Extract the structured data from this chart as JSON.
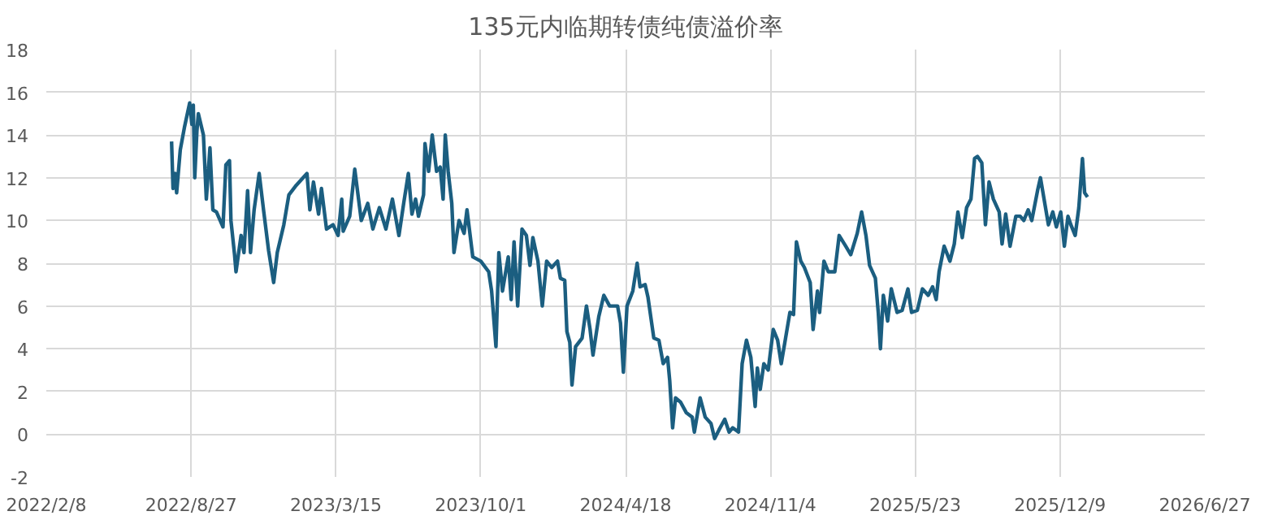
{
  "chart_data": {
    "type": "line",
    "title": "135元内临期转债纯债溢价率",
    "xlim": [
      "2022-02-08",
      "2026-06-27"
    ],
    "xticks": [
      {
        "value": "2022-02-08",
        "label": "2022/2/8"
      },
      {
        "value": "2022-08-27",
        "label": "2022/8/27"
      },
      {
        "value": "2023-03-15",
        "label": "2023/3/15"
      },
      {
        "value": "2023-10-01",
        "label": "2023/10/1"
      },
      {
        "value": "2024-04-18",
        "label": "2024/4/18"
      },
      {
        "value": "2024-11-04",
        "label": "2024/11/4"
      },
      {
        "value": "2025-05-23",
        "label": "2025/5/23"
      },
      {
        "value": "2025-12-09",
        "label": "2025/12/9"
      },
      {
        "value": "2026-06-27",
        "label": "2026/6/27"
      }
    ],
    "ylim": [
      -2,
      18
    ],
    "yticks": [
      -2,
      0,
      2,
      4,
      6,
      8,
      10,
      12,
      14,
      16,
      18
    ],
    "grid": true,
    "marker": "none",
    "line_style": "solid",
    "x": [
      "2022-07-31",
      "2022-08-02",
      "2022-08-05",
      "2022-08-07",
      "2022-08-12",
      "2022-08-18",
      "2022-08-25",
      "2022-08-28",
      "2022-08-30",
      "2022-09-01",
      "2022-09-04",
      "2022-09-06",
      "2022-09-13",
      "2022-09-17",
      "2022-09-22",
      "2022-09-26",
      "2022-10-01",
      "2022-10-10",
      "2022-10-14",
      "2022-10-19",
      "2022-10-21",
      "2022-10-26",
      "2022-10-28",
      "2022-11-04",
      "2022-11-08",
      "2022-11-13",
      "2022-11-17",
      "2022-11-22",
      "2022-11-29",
      "2022-12-05",
      "2022-12-12",
      "2022-12-19",
      "2022-12-24",
      "2023-01-02",
      "2023-01-09",
      "2023-01-18",
      "2023-02-03",
      "2023-02-07",
      "2023-02-12",
      "2023-02-19",
      "2023-02-23",
      "2023-03-02",
      "2023-03-11",
      "2023-03-18",
      "2023-03-23",
      "2023-03-25",
      "2023-04-03",
      "2023-04-10",
      "2023-04-19",
      "2023-04-28",
      "2023-05-05",
      "2023-05-14",
      "2023-05-23",
      "2023-06-01",
      "2023-06-10",
      "2023-06-17",
      "2023-06-23",
      "2023-06-28",
      "2023-07-03",
      "2023-07-07",
      "2023-07-14",
      "2023-07-16",
      "2023-07-21",
      "2023-07-26",
      "2023-08-01",
      "2023-08-06",
      "2023-08-10",
      "2023-08-13",
      "2023-08-17",
      "2023-08-22",
      "2023-08-25",
      "2023-09-01",
      "2023-09-08",
      "2023-09-12",
      "2023-09-20",
      "2023-10-01",
      "2023-10-12",
      "2023-10-16",
      "2023-10-22",
      "2023-10-26",
      "2023-10-31",
      "2023-11-08",
      "2023-11-12",
      "2023-11-16",
      "2023-11-21",
      "2023-11-27",
      "2023-12-03",
      "2023-12-08",
      "2023-12-12",
      "2023-12-19",
      "2023-12-25",
      "2023-12-31",
      "2024-01-07",
      "2024-01-15",
      "2024-01-19",
      "2024-01-25",
      "2024-01-28",
      "2024-02-01",
      "2024-02-04",
      "2024-02-09",
      "2024-02-18",
      "2024-02-24",
      "2024-02-29",
      "2024-03-04",
      "2024-03-12",
      "2024-03-19",
      "2024-03-27",
      "2024-04-07",
      "2024-04-11",
      "2024-04-15",
      "2024-04-20",
      "2024-04-28",
      "2024-05-04",
      "2024-05-08",
      "2024-05-15",
      "2024-05-19",
      "2024-05-27",
      "2024-06-03",
      "2024-06-09",
      "2024-06-15",
      "2024-06-18",
      "2024-06-22",
      "2024-06-26",
      "2024-07-03",
      "2024-07-11",
      "2024-07-19",
      "2024-07-22",
      "2024-07-30",
      "2024-08-06",
      "2024-08-14",
      "2024-08-19",
      "2024-08-25",
      "2024-09-02",
      "2024-09-08",
      "2024-09-13",
      "2024-09-21",
      "2024-09-26",
      "2024-10-02",
      "2024-10-08",
      "2024-10-14",
      "2024-10-17",
      "2024-10-21",
      "2024-10-26",
      "2024-11-01",
      "2024-11-08",
      "2024-11-14",
      "2024-11-19",
      "2024-11-25",
      "2024-12-01",
      "2024-12-06",
      "2024-12-10",
      "2024-12-16",
      "2024-12-21",
      "2024-12-29",
      "2025-01-02",
      "2025-01-08",
      "2025-01-11",
      "2025-01-17",
      "2025-01-23",
      "2025-02-01",
      "2025-02-07",
      "2025-02-16",
      "2025-02-23",
      "2025-03-04",
      "2025-03-10",
      "2025-03-16",
      "2025-03-21",
      "2025-03-29",
      "2025-04-02",
      "2025-04-05",
      "2025-04-09",
      "2025-04-15",
      "2025-04-20",
      "2025-04-28",
      "2025-05-05",
      "2025-05-13",
      "2025-05-18",
      "2025-05-26",
      "2025-06-02",
      "2025-06-10",
      "2025-06-16",
      "2025-06-21",
      "2025-06-25",
      "2025-07-02",
      "2025-07-10",
      "2025-07-16",
      "2025-07-21",
      "2025-07-27",
      "2025-08-02",
      "2025-08-08",
      "2025-08-13",
      "2025-08-17",
      "2025-08-23",
      "2025-08-28",
      "2025-09-02",
      "2025-09-08",
      "2025-09-16",
      "2025-09-20",
      "2025-09-25",
      "2025-10-01",
      "2025-10-09",
      "2025-10-15",
      "2025-10-20",
      "2025-10-26",
      "2025-10-31",
      "2025-11-08",
      "2025-11-12",
      "2025-11-17",
      "2025-11-23",
      "2025-11-29",
      "2025-12-04",
      "2025-12-10",
      "2025-12-15",
      "2025-12-20",
      "2025-12-24",
      "2025-12-30",
      "2026-01-04",
      "2026-01-09",
      "2026-01-12",
      "2026-01-16"
    ],
    "series": [
      {
        "color": "#1b5e80",
        "values": [
          13.7,
          11.5,
          12.2,
          11.3,
          13.3,
          14.4,
          15.5,
          14.5,
          15.4,
          12.0,
          14.2,
          15.0,
          14.0,
          11.0,
          13.4,
          10.5,
          10.4,
          9.7,
          12.6,
          12.8,
          10.0,
          8.4,
          7.6,
          9.3,
          8.5,
          11.4,
          8.5,
          10.5,
          12.2,
          10.5,
          8.6,
          7.1,
          8.5,
          9.8,
          11.2,
          11.6,
          12.2,
          10.5,
          11.8,
          10.3,
          11.5,
          9.6,
          9.8,
          9.3,
          11.0,
          9.5,
          10.2,
          12.4,
          10.0,
          10.8,
          9.6,
          10.6,
          9.6,
          11.0,
          9.3,
          10.9,
          12.2,
          10.3,
          11.0,
          10.2,
          11.2,
          13.6,
          12.3,
          14.0,
          12.3,
          12.5,
          11.0,
          14.0,
          12.3,
          10.8,
          8.5,
          10.0,
          9.4,
          10.5,
          8.3,
          8.1,
          7.6,
          6.7,
          4.1,
          8.5,
          6.7,
          8.3,
          6.3,
          9.0,
          6.0,
          9.6,
          9.3,
          7.9,
          9.2,
          8.1,
          6.0,
          8.1,
          7.8,
          8.1,
          7.3,
          7.2,
          4.8,
          4.3,
          2.3,
          4.1,
          4.5,
          6.0,
          4.9,
          3.7,
          5.5,
          6.5,
          6.0,
          6.0,
          5.2,
          2.9,
          6.0,
          6.7,
          8.0,
          6.9,
          7.0,
          6.4,
          4.5,
          4.4,
          3.3,
          3.6,
          2.5,
          0.3,
          1.7,
          1.5,
          1.0,
          0.8,
          0.1,
          1.7,
          0.8,
          0.5,
          -0.2,
          0.2,
          0.7,
          0.1,
          0.3,
          0.1,
          3.3,
          4.4,
          3.6,
          1.3,
          3.1,
          2.1,
          3.3,
          3.0,
          4.9,
          4.4,
          3.3,
          4.5,
          5.7,
          5.6,
          9.0,
          8.1,
          7.8,
          7.1,
          4.9,
          6.7,
          5.7,
          8.1,
          7.6,
          7.6,
          9.3,
          8.8,
          8.4,
          9.4,
          10.4,
          9.3,
          7.9,
          7.3,
          5.7,
          4.0,
          6.5,
          5.3,
          6.8,
          5.7,
          5.8,
          6.8,
          5.7,
          5.8,
          6.8,
          6.5,
          6.9,
          6.3,
          7.6,
          8.8,
          8.1,
          8.9,
          10.4,
          9.2,
          10.6,
          11.0,
          12.9,
          13.0,
          12.7,
          9.8,
          11.8,
          11.0,
          10.4,
          8.9,
          10.3,
          8.8,
          10.2,
          10.2,
          10.0,
          10.5,
          10.0,
          11.4,
          12.0,
          11.0,
          9.8,
          10.4,
          9.7,
          10.4,
          8.8,
          10.2,
          9.8,
          9.3,
          10.6,
          12.9,
          11.3,
          11.1
        ]
      }
    ]
  }
}
